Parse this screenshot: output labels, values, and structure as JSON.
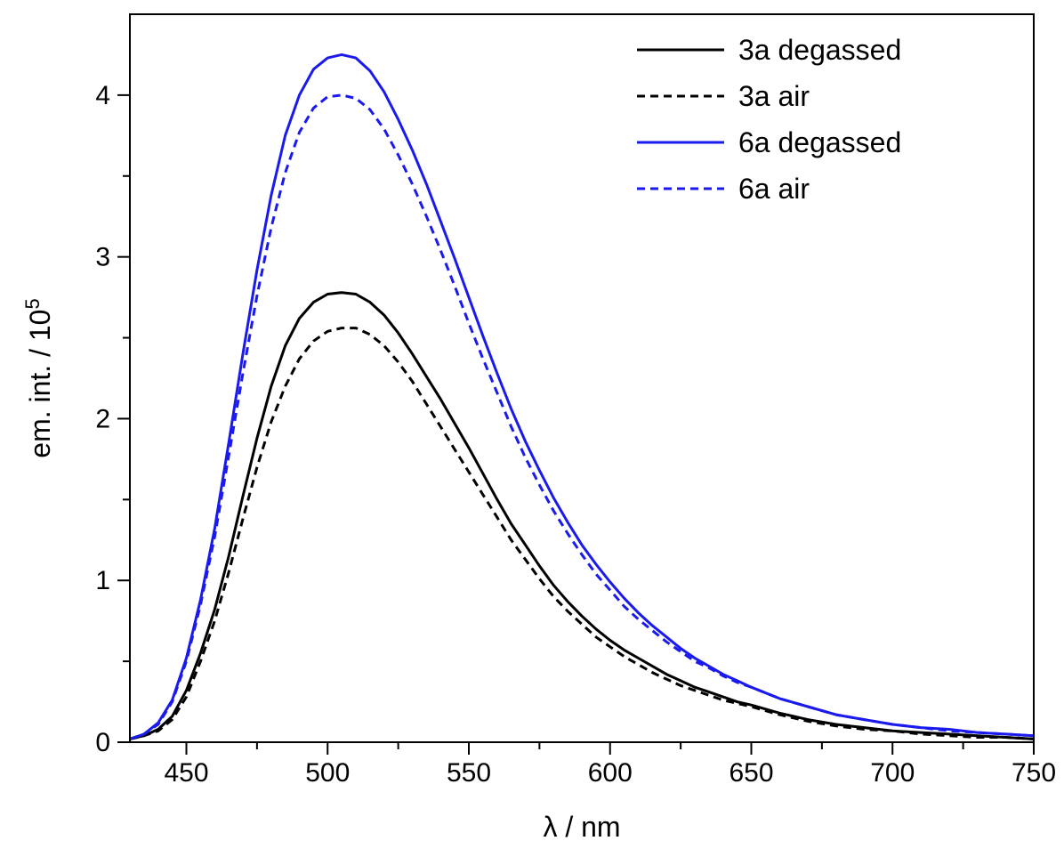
{
  "chart_data": {
    "type": "line",
    "xlabel": "λ / nm",
    "ylabel_main": "em. int. / 10",
    "ylabel_sup": "5",
    "xlim": [
      430,
      750
    ],
    "ylim": [
      0,
      4.5
    ],
    "xticks": [
      450,
      500,
      550,
      600,
      650,
      700,
      750
    ],
    "yticks": [
      0,
      1,
      2,
      3,
      4
    ],
    "grid": false,
    "legend_position": "top-right",
    "x": [
      430,
      435,
      440,
      445,
      450,
      455,
      460,
      465,
      470,
      475,
      480,
      485,
      490,
      495,
      500,
      505,
      510,
      515,
      520,
      525,
      530,
      535,
      540,
      545,
      550,
      555,
      560,
      565,
      570,
      575,
      580,
      585,
      590,
      595,
      600,
      605,
      610,
      615,
      620,
      625,
      630,
      635,
      640,
      645,
      650,
      660,
      670,
      680,
      690,
      700,
      710,
      720,
      730,
      740,
      750
    ],
    "series": [
      {
        "name": "3a degassed",
        "color": "#000000",
        "dash": "solid",
        "values": [
          0.02,
          0.04,
          0.08,
          0.16,
          0.32,
          0.55,
          0.82,
          1.15,
          1.52,
          1.88,
          2.2,
          2.45,
          2.62,
          2.72,
          2.77,
          2.78,
          2.77,
          2.72,
          2.64,
          2.53,
          2.4,
          2.26,
          2.12,
          1.97,
          1.82,
          1.66,
          1.5,
          1.35,
          1.22,
          1.09,
          0.97,
          0.87,
          0.78,
          0.7,
          0.63,
          0.57,
          0.52,
          0.47,
          0.42,
          0.38,
          0.34,
          0.31,
          0.28,
          0.25,
          0.23,
          0.18,
          0.14,
          0.11,
          0.09,
          0.07,
          0.06,
          0.05,
          0.04,
          0.03,
          0.02
        ]
      },
      {
        "name": "3a air",
        "color": "#000000",
        "dash": "dashed",
        "values": [
          0.02,
          0.04,
          0.07,
          0.14,
          0.28,
          0.5,
          0.75,
          1.05,
          1.38,
          1.7,
          1.98,
          2.2,
          2.37,
          2.48,
          2.54,
          2.56,
          2.56,
          2.52,
          2.45,
          2.35,
          2.23,
          2.09,
          1.95,
          1.81,
          1.67,
          1.53,
          1.39,
          1.25,
          1.13,
          1.01,
          0.9,
          0.81,
          0.73,
          0.65,
          0.59,
          0.53,
          0.48,
          0.43,
          0.39,
          0.35,
          0.32,
          0.29,
          0.26,
          0.24,
          0.22,
          0.17,
          0.13,
          0.1,
          0.08,
          0.07,
          0.05,
          0.04,
          0.03,
          0.03,
          0.02
        ]
      },
      {
        "name": "6a degassed",
        "color": "#1a1aee",
        "dash": "solid",
        "values": [
          0.02,
          0.05,
          0.12,
          0.26,
          0.52,
          0.88,
          1.32,
          1.85,
          2.4,
          2.92,
          3.38,
          3.75,
          4.0,
          4.16,
          4.23,
          4.25,
          4.23,
          4.15,
          4.02,
          3.85,
          3.66,
          3.45,
          3.22,
          2.99,
          2.75,
          2.51,
          2.28,
          2.06,
          1.86,
          1.68,
          1.51,
          1.36,
          1.22,
          1.1,
          0.99,
          0.89,
          0.8,
          0.72,
          0.65,
          0.58,
          0.52,
          0.47,
          0.42,
          0.38,
          0.34,
          0.27,
          0.22,
          0.17,
          0.14,
          0.11,
          0.09,
          0.08,
          0.06,
          0.05,
          0.04
        ]
      },
      {
        "name": "6a air",
        "color": "#1a1aee",
        "dash": "dashed",
        "values": [
          0.02,
          0.05,
          0.11,
          0.25,
          0.5,
          0.85,
          1.27,
          1.77,
          2.28,
          2.76,
          3.18,
          3.52,
          3.77,
          3.92,
          3.99,
          4.0,
          3.98,
          3.91,
          3.79,
          3.63,
          3.45,
          3.25,
          3.04,
          2.82,
          2.59,
          2.37,
          2.16,
          1.95,
          1.76,
          1.59,
          1.43,
          1.29,
          1.16,
          1.04,
          0.94,
          0.84,
          0.76,
          0.69,
          0.62,
          0.56,
          0.5,
          0.46,
          0.41,
          0.37,
          0.34,
          0.27,
          0.22,
          0.17,
          0.14,
          0.11,
          0.09,
          0.07,
          0.06,
          0.05,
          0.04
        ]
      }
    ]
  }
}
